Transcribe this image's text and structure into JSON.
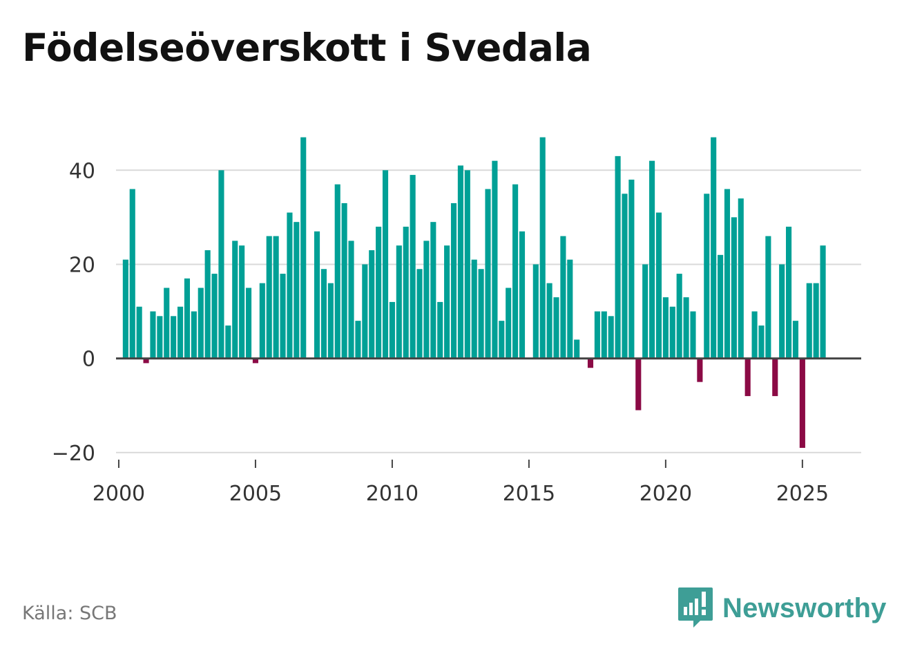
{
  "title": "Födelseöverskott i Svedala",
  "source": "Källa: SCB",
  "brand": {
    "name": "Newsworthy",
    "icon": "bar-chart-speech-bubble-icon"
  },
  "colors": {
    "positive": "#00a096",
    "negative": "#8b0a45",
    "grid": "#d9d9d9",
    "zero_line": "#444444",
    "brand": "#3e9e96"
  },
  "chart_data": {
    "type": "bar",
    "title": "Födelseöverskott i Svedala",
    "xlabel": "",
    "ylabel": "",
    "frequency": "quarterly",
    "x_start": 2000.25,
    "x_step": 0.25,
    "xlim": [
      1999.9,
      2027.15
    ],
    "ylim": [
      -21.5,
      49
    ],
    "x_ticks": [
      2000,
      2005,
      2010,
      2015,
      2020,
      2025
    ],
    "x_tick_labels": [
      "2000",
      "2005",
      "2010",
      "2015",
      "2020",
      "2025"
    ],
    "y_ticks": [
      -20,
      0,
      20,
      40
    ],
    "y_tick_labels": [
      "−20",
      "0",
      "20",
      "40"
    ],
    "grid": true,
    "values": [
      21,
      36,
      11,
      -1,
      10,
      9,
      15,
      9,
      11,
      17,
      10,
      15,
      23,
      18,
      40,
      7,
      25,
      24,
      15,
      -1,
      16,
      26,
      26,
      18,
      31,
      29,
      47,
      0,
      27,
      19,
      16,
      37,
      33,
      25,
      8,
      20,
      23,
      28,
      40,
      12,
      24,
      28,
      39,
      19,
      25,
      29,
      12,
      24,
      33,
      41,
      40,
      21,
      19,
      36,
      42,
      8,
      15,
      37,
      27,
      0,
      20,
      47,
      16,
      13,
      26,
      21,
      4,
      0,
      -2,
      10,
      10,
      9,
      43,
      35,
      38,
      -11,
      20,
      42,
      31,
      13,
      11,
      18,
      13,
      10,
      -5,
      35,
      47,
      22,
      36,
      30,
      34,
      -8,
      10,
      7,
      26,
      -8,
      20,
      28,
      8,
      -19,
      16,
      16,
      24
    ]
  }
}
